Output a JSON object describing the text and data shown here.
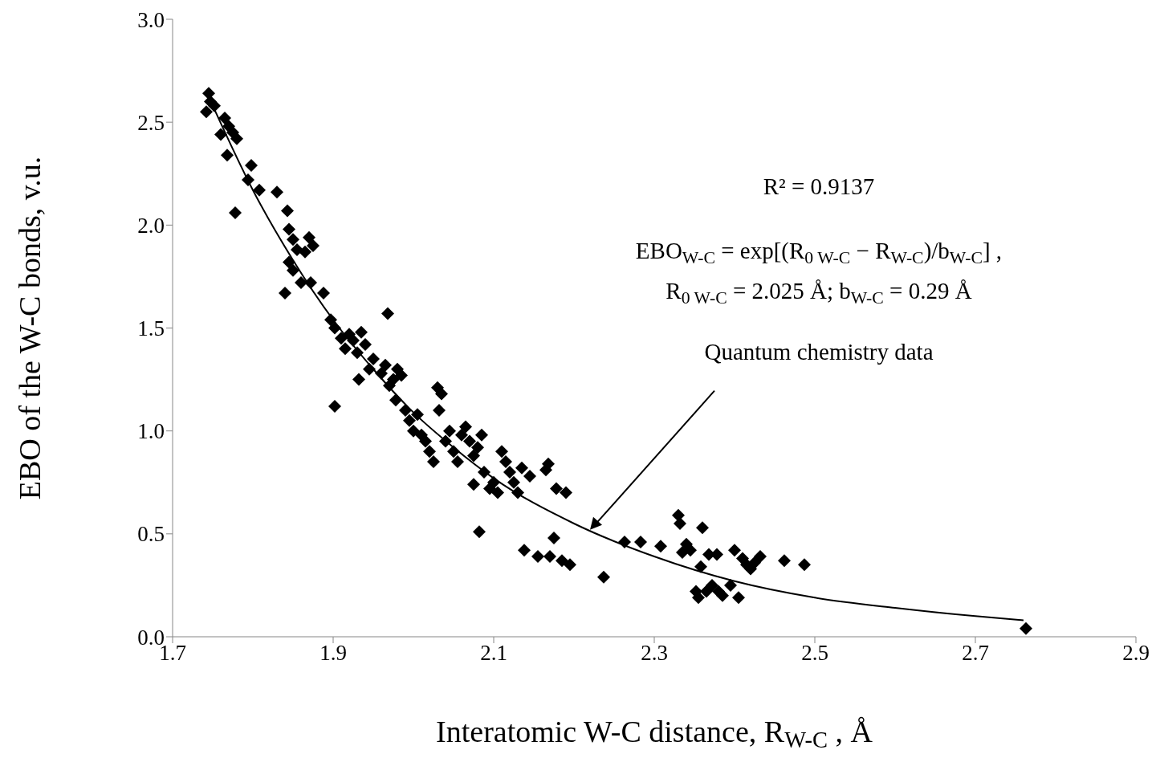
{
  "chart_data": {
    "type": "scatter",
    "xlabel": "Interatomic W-C distance, R$_{W-C}$ , Å",
    "ylabel": "EBO of the W-C bonds, v.u.",
    "xlim": [
      1.7,
      2.9
    ],
    "xticks": [
      1.7,
      1.9,
      2.1,
      2.3,
      2.5,
      2.7,
      2.9
    ],
    "ylim": [
      0,
      3
    ],
    "yticks": [
      {
        "value": 0,
        "label": "0.0"
      },
      {
        "value": 0.5,
        "label": "0.5"
      },
      {
        "value": 1,
        "label": "1.0"
      },
      {
        "value": 1.5,
        "label": "1.5"
      },
      {
        "value": 2,
        "label": "2.0"
      },
      {
        "value": 2.5,
        "label": "2.5"
      },
      {
        "value": 3,
        "label": "3.0"
      }
    ],
    "grid": false,
    "legend": false,
    "annotations": [
      "R² = 0.9137",
      "EBO$_{W-C}$ = exp[(R$_{0 W-C}$ − R$_{W-C}$)/b$_{W-C}$] ,",
      "R$_{0 W-C}$ = 2.025 Å; b$_{W-C}$ = 0.29 Å",
      {
        "text": "Quantum chemistry data",
        "x": 2.22,
        "y": 0.52
      }
    ],
    "series": [
      {
        "marker": "diamond",
        "color": "#000000",
        "x": [
          1.745,
          1.747,
          1.752,
          1.742,
          1.76,
          1.765,
          1.77,
          1.775,
          1.78,
          1.768,
          1.798,
          1.794,
          1.778,
          1.808,
          1.83,
          1.843,
          1.845,
          1.85,
          1.855,
          1.845,
          1.85,
          1.86,
          1.865,
          1.87,
          1.875,
          1.872,
          1.84,
          1.888,
          1.897,
          1.902,
          1.91,
          1.915,
          1.92,
          1.925,
          1.93,
          1.935,
          1.94,
          1.945,
          1.932,
          1.95,
          1.96,
          1.965,
          1.968,
          1.97,
          1.975,
          1.98,
          1.985,
          1.978,
          1.99,
          1.995,
          2.0,
          2.005,
          2.01,
          2.015,
          2.02,
          2.025,
          2.03,
          2.035,
          2.032,
          2.04,
          2.045,
          2.05,
          2.055,
          2.06,
          2.065,
          2.07,
          2.075,
          2.08,
          2.085,
          2.088,
          2.075,
          2.095,
          2.1,
          2.105,
          2.11,
          2.115,
          2.12,
          2.125,
          2.13,
          2.135,
          2.145,
          2.082,
          2.138,
          2.155,
          2.17,
          2.175,
          2.165,
          2.168,
          2.178,
          2.19,
          2.185,
          2.195,
          1.902,
          2.237,
          2.263,
          2.283,
          2.308,
          2.33,
          2.332,
          2.335,
          2.34,
          2.345,
          2.352,
          2.355,
          2.358,
          2.36,
          2.365,
          2.368,
          2.372,
          2.378,
          2.38,
          2.385,
          2.395,
          2.4,
          2.405,
          2.41,
          2.415,
          2.42,
          2.425,
          2.432,
          2.462,
          2.487,
          2.763
        ],
        "values": [
          2.64,
          2.6,
          2.58,
          2.55,
          2.44,
          2.52,
          2.48,
          2.45,
          2.42,
          2.34,
          2.29,
          2.22,
          2.06,
          2.17,
          2.16,
          2.07,
          1.98,
          1.93,
          1.88,
          1.82,
          1.78,
          1.72,
          1.87,
          1.94,
          1.9,
          1.72,
          1.67,
          1.67,
          1.54,
          1.5,
          1.45,
          1.4,
          1.47,
          1.44,
          1.38,
          1.48,
          1.42,
          1.3,
          1.25,
          1.35,
          1.28,
          1.32,
          1.57,
          1.22,
          1.25,
          1.3,
          1.27,
          1.15,
          1.1,
          1.05,
          1.0,
          1.08,
          0.98,
          0.95,
          0.9,
          0.85,
          1.21,
          1.18,
          1.1,
          0.95,
          1.0,
          0.9,
          0.85,
          0.98,
          1.02,
          0.95,
          0.88,
          0.92,
          0.98,
          0.8,
          0.74,
          0.72,
          0.75,
          0.7,
          0.9,
          0.85,
          0.8,
          0.75,
          0.7,
          0.82,
          0.78,
          0.51,
          0.42,
          0.39,
          0.39,
          0.48,
          0.81,
          0.84,
          0.72,
          0.7,
          0.37,
          0.35,
          1.12,
          0.29,
          0.46,
          0.46,
          0.44,
          0.59,
          0.55,
          0.41,
          0.45,
          0.42,
          0.22,
          0.19,
          0.34,
          0.53,
          0.22,
          0.4,
          0.25,
          0.4,
          0.22,
          0.2,
          0.25,
          0.42,
          0.19,
          0.38,
          0.35,
          0.33,
          0.36,
          0.39,
          0.37,
          0.35,
          0.04
        ]
      },
      {
        "type": "line",
        "marker": "none",
        "color": "#000000",
        "x": [
          1.75,
          1.8,
          1.85,
          1.9,
          1.95,
          2.0,
          2.05,
          2.1,
          2.2,
          2.3,
          2.4,
          2.5,
          2.6,
          2.7,
          2.76
        ],
        "values": [
          2.58,
          2.17,
          1.83,
          1.54,
          1.3,
          1.09,
          0.92,
          0.77,
          0.55,
          0.39,
          0.27,
          0.19,
          0.14,
          0.1,
          0.08
        ]
      }
    ]
  }
}
